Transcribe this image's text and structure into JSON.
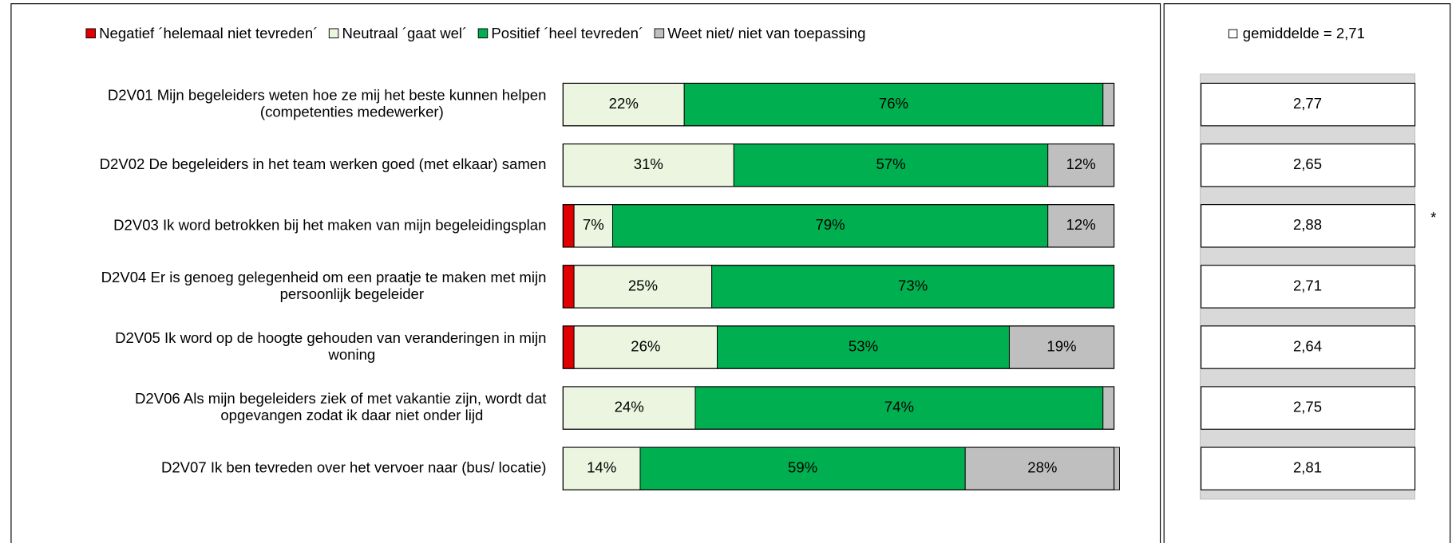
{
  "chart_data": {
    "type": "stacked-bar-horizontal",
    "categories": [
      [
        "D2V01   Mijn begeleiders weten hoe ze mij het beste kunnen helpen",
        "(competenties medewerker)"
      ],
      [
        "D2V02   De begeleiders in het team werken goed (met elkaar) samen"
      ],
      [
        "D2V03   Ik word betrokken bij het maken van mijn begeleidingsplan"
      ],
      [
        "D2V04   Er is genoeg gelegenheid om een praatje te maken met mijn",
        "persoonlijk begeleider"
      ],
      [
        "D2V05   Ik word op de hoogte gehouden van veranderingen in mijn",
        "woning"
      ],
      [
        "D2V06   Als mijn begeleiders ziek of met vakantie zijn, wordt dat",
        "opgevangen zodat ik daar niet onder lijd"
      ],
      [
        "D2V07   Ik ben tevreden over het vervoer naar (bus/ locatie)"
      ]
    ],
    "xlim": [
      0,
      100
    ],
    "series": [
      {
        "name": "Negatief ´helemaal niet tevreden´",
        "color": "#e00000",
        "label_color": "#000000",
        "values": [
          0,
          0,
          2,
          2,
          2,
          0,
          0
        ],
        "value_labels": [
          null,
          null,
          null,
          null,
          null,
          null,
          null
        ]
      },
      {
        "name": "Neutraal ´gaat wel´",
        "color": "#ebf5df",
        "label_color": "#000000",
        "values": [
          22,
          31,
          7,
          25,
          26,
          24,
          14
        ],
        "value_labels": [
          "22%",
          "31%",
          "7%",
          "25%",
          "26%",
          "24%",
          "14%"
        ]
      },
      {
        "name": "Positief ´heel tevreden´",
        "color": "#00b050",
        "label_color": "#000000",
        "values": [
          76,
          57,
          79,
          73,
          53,
          74,
          59
        ],
        "value_labels": [
          "76%",
          "57%",
          "79%",
          "73%",
          "53%",
          "74%",
          "59%"
        ]
      },
      {
        "name": "Weet niet/ niet van toepassing",
        "color": "#bfbfbf",
        "label_color": "#ffffff",
        "values": [
          2,
          12,
          12,
          0,
          19,
          2,
          28
        ],
        "value_labels": [
          null,
          "12%",
          "12%",
          null,
          "19%",
          null,
          "28%"
        ]
      }
    ],
    "means": {
      "legend": "gemiddelde = 2,71",
      "values": [
        2.77,
        2.65,
        2.88,
        2.71,
        2.64,
        2.75,
        2.81
      ],
      "value_labels": [
        "2,77",
        "2,65",
        "2,88",
        "2,71",
        "2,64",
        "2,75",
        "2,81"
      ],
      "colors": [
        "#33dd33",
        "#ee0000",
        "#33dd33",
        "#33dd33",
        "#ee0000",
        "#33dd33",
        "#33dd33"
      ]
    },
    "annotations": [
      null,
      null,
      "*",
      null,
      null,
      null,
      null
    ]
  }
}
